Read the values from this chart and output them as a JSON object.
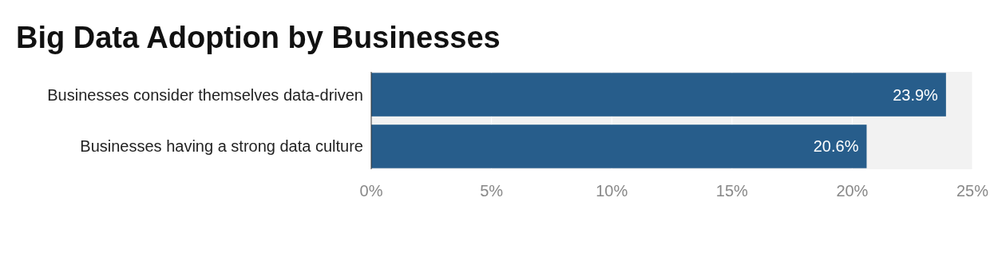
{
  "chart_data": {
    "type": "bar",
    "orientation": "horizontal",
    "title": "Big Data Adoption by Businesses",
    "categories": [
      "Businesses consider themselves data-driven",
      "Businesses having a strong data culture"
    ],
    "values": [
      23.9,
      20.6
    ],
    "color": "#275d8b",
    "value_labels": [
      "23.9%",
      "20.6%"
    ],
    "xlim": [
      0,
      25
    ],
    "xticks": [
      {
        "value": 0,
        "label": "0%"
      },
      {
        "value": 5,
        "label": "5%"
      },
      {
        "value": 10,
        "label": "10%"
      },
      {
        "value": 15,
        "label": "15%"
      },
      {
        "value": 20,
        "label": "20%"
      },
      {
        "value": 25,
        "label": "25%"
      }
    ],
    "grid": "x"
  }
}
